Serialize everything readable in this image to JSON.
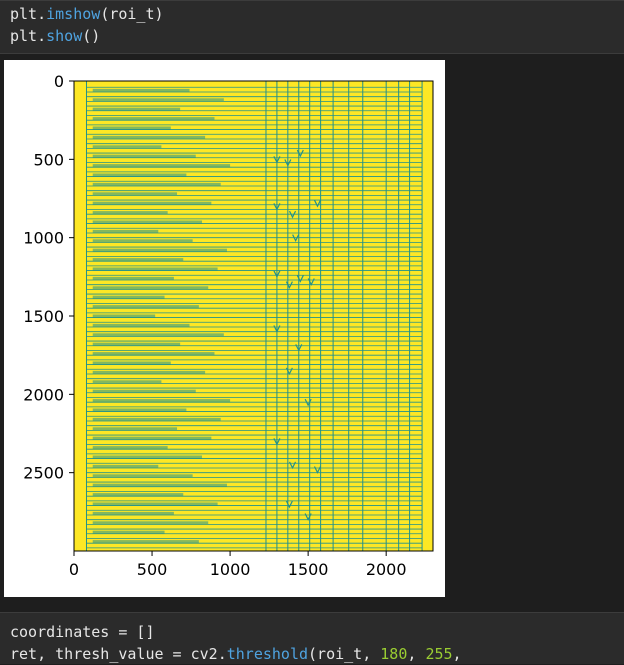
{
  "top_cell": {
    "line1": {
      "obj": "plt.",
      "fn": "imshow",
      "args": "(roi_t)"
    },
    "line2": {
      "obj": "plt.",
      "fn": "show",
      "args": "()"
    }
  },
  "bottom_cell": {
    "line1": {
      "left": "coordinates = []"
    },
    "line2": {
      "left": "ret, thresh_value = cv2.",
      "fn": "threshold",
      "mid": "(roi_t, ",
      "num1": "180",
      "sep": ", ",
      "num2": "255",
      "end": ","
    }
  },
  "colors": {
    "yellow": "#fde725",
    "teal": "#21918c",
    "background": "#1e1e1e",
    "cell": "#2b2b2b"
  },
  "chart_data": {
    "type": "heatmap",
    "title": "",
    "xlabel": "",
    "ylabel": "",
    "xlim": [
      0,
      2300
    ],
    "ylim": [
      3000,
      0
    ],
    "x_ticks": [
      0,
      500,
      1000,
      1500,
      2000
    ],
    "y_ticks": [
      0,
      500,
      1000,
      1500,
      2000,
      2500
    ],
    "x_tick_labels": [
      "0",
      "500",
      "1000",
      "1500",
      "2000"
    ],
    "y_tick_labels": [
      "0",
      "500",
      "1000",
      "1500",
      "2000",
      "2500"
    ],
    "vertical_lines_x": [
      80,
      1230,
      1300,
      1370,
      1440,
      1510,
      1580,
      1660,
      1760,
      1850,
      2000,
      2080,
      2150,
      2230
    ],
    "row_spacing": 30,
    "check_marks": [
      [
        1300,
        500
      ],
      [
        1370,
        520
      ],
      [
        1450,
        460
      ],
      [
        1300,
        800
      ],
      [
        1400,
        850
      ],
      [
        1560,
        780
      ],
      [
        1420,
        1000
      ],
      [
        1300,
        1230
      ],
      [
        1380,
        1300
      ],
      [
        1450,
        1260
      ],
      [
        1520,
        1280
      ],
      [
        1300,
        1580
      ],
      [
        1440,
        1700
      ],
      [
        1380,
        1850
      ],
      [
        1500,
        2050
      ],
      [
        1300,
        2300
      ],
      [
        1400,
        2450
      ],
      [
        1560,
        2480
      ],
      [
        1380,
        2700
      ],
      [
        1500,
        2780
      ]
    ]
  }
}
